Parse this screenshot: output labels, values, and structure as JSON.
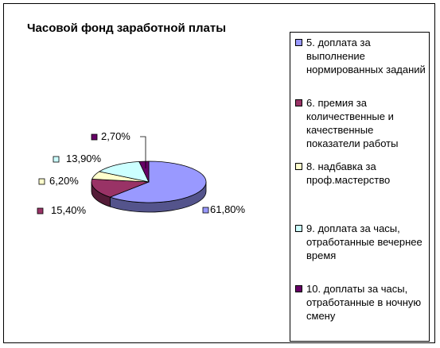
{
  "chart_data": {
    "type": "pie",
    "title": "Часовой фонд заработной платы",
    "categories": [
      "5. доплата за выполнение нормированных заданий",
      "6. премия за количественные и качественные показатели работы",
      "8. надбавка за проф.мастерство",
      "9. доплата за часы, отработанные вечернее время",
      "10. доплаты за часы, отработанные в ночную смену"
    ],
    "values": [
      61.8,
      15.4,
      6.2,
      13.9,
      2.7
    ],
    "data_labels": [
      "61,80%",
      "15,40%",
      "6,20%",
      "13,90%",
      "2,70%"
    ],
    "colors": [
      "#9999ff",
      "#993366",
      "#ffffcc",
      "#ccffff",
      "#660066"
    ],
    "legend_position": "right",
    "style": "3d-pie"
  }
}
